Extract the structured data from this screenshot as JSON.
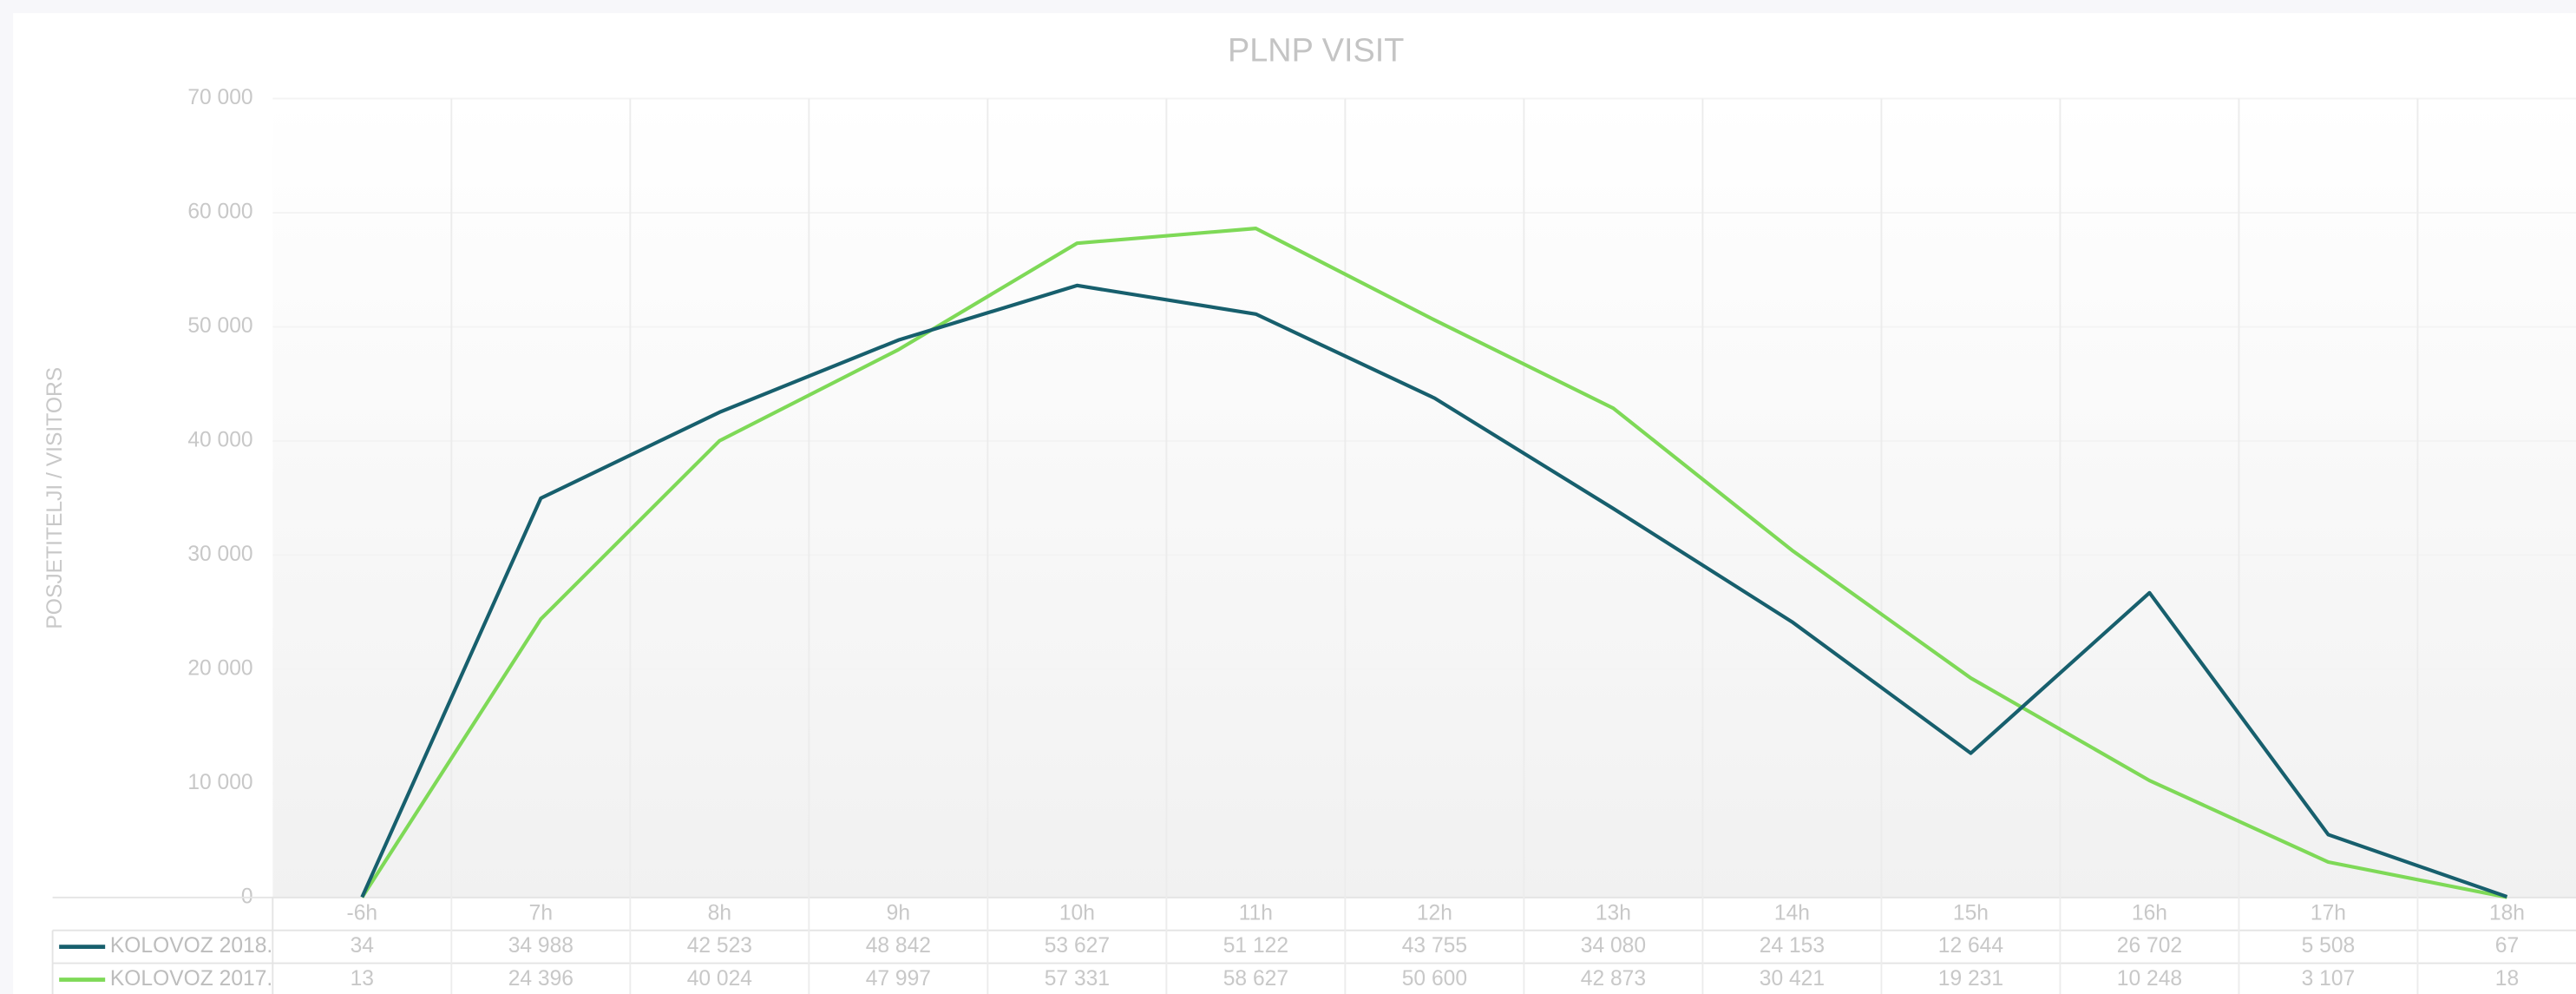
{
  "chart_data": {
    "type": "line",
    "title": "PLNP VISIT",
    "y_label": "POSJETITELJI / VISITORS",
    "categories": [
      "-6h",
      "7h",
      "8h",
      "9h",
      "10h",
      "11h",
      "12h",
      "13h",
      "14h",
      "15h",
      "16h",
      "17h",
      "18h"
    ],
    "series": [
      {
        "name": "KOLOVOZ 2018.",
        "color": "#175f6d",
        "values": [
          34,
          34988,
          42523,
          48842,
          53627,
          51122,
          43755,
          34080,
          24153,
          12644,
          26702,
          5508,
          67
        ],
        "value_labels": [
          "34",
          "34 988",
          "42 523",
          "48 842",
          "53 627",
          "51 122",
          "43 755",
          "34 080",
          "24 153",
          "12 644",
          "26 702",
          "5 508",
          "67"
        ]
      },
      {
        "name": "KOLOVOZ 2017.",
        "color": "#7ed957",
        "values": [
          13,
          24396,
          40024,
          47997,
          57331,
          58627,
          50600,
          42873,
          30421,
          19231,
          10248,
          3107,
          18
        ],
        "value_labels": [
          "13",
          "24 396",
          "40 024",
          "47 997",
          "57 331",
          "58 627",
          "50 600",
          "42 873",
          "30 421",
          "19 231",
          "10 248",
          "3 107",
          "18"
        ]
      }
    ],
    "ylim": [
      0,
      70000
    ],
    "yticks": [
      0,
      {
        "value": 10000,
        "label": "10 000"
      },
      {
        "value": 20000,
        "label": "20 000"
      },
      {
        "value": 30000,
        "label": "30 000"
      },
      {
        "value": 40000,
        "label": "40 000"
      },
      {
        "value": 50000,
        "label": "50 000"
      },
      {
        "value": 60000,
        "label": "60 000"
      },
      {
        "value": 70000,
        "label": "70 000"
      }
    ],
    "grid": true
  }
}
